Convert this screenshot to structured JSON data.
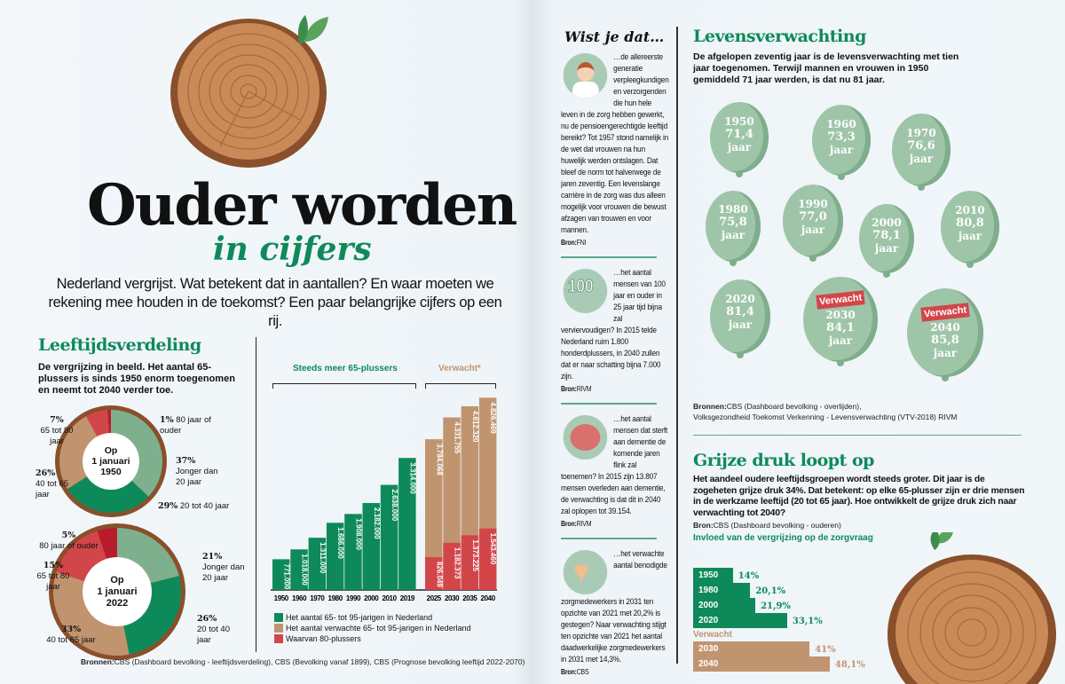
{
  "header": {
    "title": "Ouder worden",
    "subtitle": "in cijfers",
    "intro": "Nederland vergrijst. Wat betekent dat in aantallen? En waar moeten we rekening mee houden in de toekomst? Een paar belangrijke cijfers op een rij."
  },
  "leeftijd": {
    "heading": "Leeftijdsverdeling",
    "lead": "De vergrijzing in beeld. Het aantal 65-plussers is sinds 1950 enorm toegenomen en neemt tot 2040 verder toe.",
    "donuts": [
      {
        "center_line1": "Op",
        "center_line2": "1 januari",
        "center_line3": "1950",
        "segments": [
          {
            "label": "Jonger dan 20 jaar",
            "pct": "37%",
            "value": 37,
            "color": "#7fb08e"
          },
          {
            "label": "20 tot 40 jaar",
            "pct": "29%",
            "value": 29,
            "color": "#0e8a5a"
          },
          {
            "label": "40 tot 65 jaar",
            "pct": "26%",
            "value": 26,
            "color": "#c19470"
          },
          {
            "label": "65 tot 80 jaar",
            "pct": "7%",
            "value": 7,
            "color": "#d2464a"
          },
          {
            "label": "80 jaar of ouder",
            "pct": "1%",
            "value": 1,
            "color": "#b81c2c"
          }
        ]
      },
      {
        "center_line1": "Op",
        "center_line2": "1 januari",
        "center_line3": "2022",
        "segments": [
          {
            "label": "Jonger dan 20 jaar",
            "pct": "21%",
            "value": 21,
            "color": "#7fb08e"
          },
          {
            "label": "20 tot 40 jaar",
            "pct": "26%",
            "value": 26,
            "color": "#0e8a5a"
          },
          {
            "label": "40 tot 65 jaar",
            "pct": "33%",
            "value": 33,
            "color": "#c19470"
          },
          {
            "label": "65 tot 80 jaar",
            "pct": "15%",
            "value": 15,
            "color": "#d2464a"
          },
          {
            "label": "80 jaar of ouder",
            "pct": "5%",
            "value": 5,
            "color": "#b81c2c"
          }
        ]
      }
    ],
    "sources_label": "Bronnen:",
    "sources": "CBS (Dashboard bevolking - leeftijdsverdeling), CBS (Bevolking vanaf 1899), CBS (Prognose bevolking leeftijd 2022-2070)"
  },
  "chart_data": {
    "type": "bar",
    "group_labels": {
      "historic": "Steeds meer 65-plussers",
      "projected": "Verwacht*"
    },
    "categories": [
      "1950",
      "1960",
      "1970",
      "1980",
      "1990",
      "2000",
      "2010",
      "2019",
      "2025",
      "2030",
      "2035",
      "2040"
    ],
    "series": [
      {
        "name": "Het aantal 65- tot 95-jarigen in Nederland",
        "color": "#0e8a5a",
        "values": [
          771000,
          1018000,
          1311000,
          1686000,
          1908000,
          2182000,
          2638000,
          3314000,
          null,
          null,
          null,
          null
        ],
        "labels": [
          "771.000",
          "1.018.000",
          "1.311.000",
          "1.686.000",
          "1.908.000",
          "2.182.000",
          "2.638.000",
          "3.314.000",
          "",
          "",
          "",
          ""
        ]
      },
      {
        "name": "Het aantal verwachte 65- tot 95-jarigen in Nederland",
        "color": "#c19470",
        "values": [
          null,
          null,
          null,
          null,
          null,
          null,
          null,
          null,
          3784068,
          4331755,
          4612320,
          4826469
        ],
        "labels": [
          "",
          "",
          "",
          "",
          "",
          "",
          "",
          "",
          "3.784.068",
          "4.331.755",
          "4.612.320",
          "4.826.469"
        ]
      },
      {
        "name": "Waarvan 80-plussers",
        "color": "#d2464a",
        "values": [
          null,
          null,
          null,
          null,
          null,
          null,
          null,
          null,
          826049,
          1182373,
          1373225,
          1543460
        ],
        "labels": [
          "",
          "",
          "",
          "",
          "",
          "",
          "",
          "",
          "826.049",
          "1.182.373",
          "1.373.225",
          "1.543.460"
        ]
      }
    ],
    "ylim": [
      0,
      4900000
    ]
  },
  "wist": {
    "heading": "Wist je dat…",
    "items": [
      {
        "icon": "nurse-bride-icon",
        "text": "…de allereerste generatie verpleegkundigen en verzorgenden die hun hele leven in de zorg hebben gewerkt, nu de pensioengerechtigde leeftijd bereikt? Tot 1957 stond namelijk in de wet dat vrouwen na hun huwelijk werden ontslagen. Dat bleef de norm tot halverwege de jaren zeventig. Een levenslange carrière in de zorg was dus alleen mogelijk voor vrouwen die bewust afzagen van trouwen en voor mannen.",
        "bron_label": "Bron:",
        "bron": "FNI"
      },
      {
        "icon": "birthday-100-icon",
        "icon_text": "100",
        "text": "…het aantal mensen van 100 jaar en ouder in 25 jaar tijd bijna zal verviervoudigen? In 2015 telde Nederland ruim 1.800 honderdplussers, in 2040 zullen dat er naar schatting bijna 7.000 zijn.",
        "bron_label": "Bron:",
        "bron": "RIVM"
      },
      {
        "icon": "brain-icon",
        "text": "…het aantal mensen dat sterft aan dementie de komende jaren flink zal toenemen? In 2015 zijn 13.807 mensen overleden aan dementie, de verwachting is dat dit in 2040 zal oplopen tot 39.154.",
        "bron_label": "Bron:",
        "bron": "RIVM"
      },
      {
        "icon": "heart-icon",
        "text": "…het verwachte aantal benodigde zorgmedewerkers in 2031 ten opzichte van 2021 met 20,2% is gestegen? Naar verwachting stijgt ten opzichte van 2021 het aantal daadwerkelijke zorgmedewerkers in 2031 met 14,3%.",
        "bron_label": "Bron:",
        "bron": "CBS"
      }
    ]
  },
  "leven": {
    "heading": "Levensverwachting",
    "lead": "De afgelopen zeventig jaar is de levensverwachting met tien jaar toegenomen. Terwijl mannen en vrouwen in 1950 gemiddeld 71 jaar werden, is dat nu 81 jaar.",
    "unit": "jaar",
    "balloons": [
      {
        "year": "1950",
        "value": "71,4"
      },
      {
        "year": "1960",
        "value": "73,3"
      },
      {
        "year": "1970",
        "value": "76,6"
      },
      {
        "year": "1980",
        "value": "75,8"
      },
      {
        "year": "1990",
        "value": "77,0"
      },
      {
        "year": "2000",
        "value": "78,1"
      },
      {
        "year": "2010",
        "value": "80,8"
      },
      {
        "year": "2020",
        "value": "81,4"
      },
      {
        "year": "2030",
        "value": "84,1",
        "tag": "Verwacht"
      },
      {
        "year": "2040",
        "value": "85,8",
        "tag": "Verwacht"
      }
    ],
    "sources_label": "Bronnen:",
    "sources_line1": "CBS (Dashboard bevolking - overlijden),",
    "sources_line2": "Volksgezondheid Toekomst Verkenning - Levensverwachting (VTV-2018) RIVM"
  },
  "grijs": {
    "heading": "Grijze druk loopt op",
    "lead": "Het aandeel oudere leeftijdsgroepen wordt steeds groter. Dit jaar is de zogeheten grijze druk 34%. Dat betekent: op elke 65-plusser zijn er drie mensen in de werkzame leeftijd (20 tot 65 jaar). Hoe ontwikkelt de grijze druk zich naar verwachting tot 2040?",
    "bron_label": "Bron:",
    "bron": "CBS (Dashboard bevolking - ouderen)",
    "chart_title": "Invloed van de vergrijzing op de zorgvraag",
    "projected_label": "Verwacht",
    "bars": [
      {
        "year": "1950",
        "value": 14,
        "label": "14%",
        "projected": false
      },
      {
        "year": "1980",
        "value": 20.1,
        "label": "20,1%",
        "projected": false
      },
      {
        "year": "2000",
        "value": 21.9,
        "label": "21,9%",
        "projected": false
      },
      {
        "year": "2020",
        "value": 33.1,
        "label": "33,1%",
        "projected": false
      },
      {
        "year": "2030",
        "value": 41,
        "label": "41%",
        "projected": true
      },
      {
        "year": "2040",
        "value": 48.1,
        "label": "48,1%",
        "projected": true
      }
    ]
  },
  "colors": {
    "green": "#0e8a5a",
    "light_green": "#7fb08e",
    "tan": "#c19470",
    "red": "#d2464a",
    "balloon": "#9fc5a9",
    "wood": "#b9794a"
  }
}
